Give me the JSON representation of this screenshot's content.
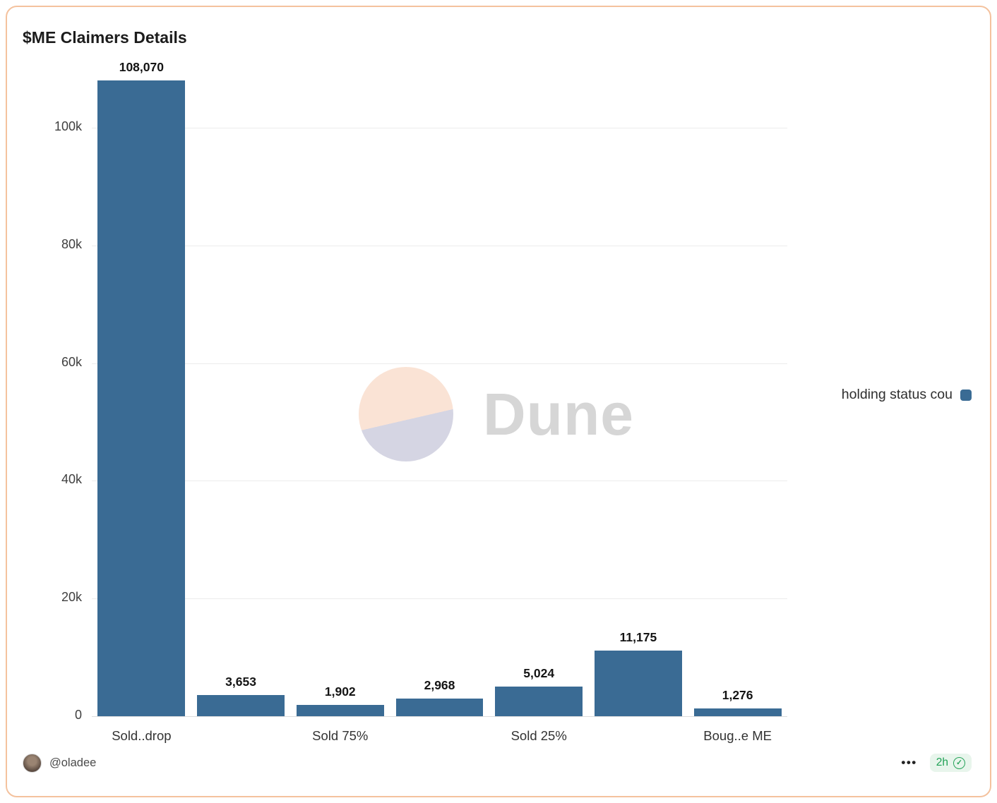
{
  "chart": {
    "title": "$ME Claimers Details",
    "legend": {
      "label": "holding status cou",
      "swatch_color": "#3a6b94"
    }
  },
  "chart_data": {
    "type": "bar",
    "title": "$ME Claimers Details",
    "categories": [
      "Sold..drop",
      "",
      "Sold 75%",
      "",
      "Sold 25%",
      "",
      "Boug..e ME"
    ],
    "series": [
      {
        "name": "holding status cou",
        "color": "#3a6b94",
        "values": [
          108070,
          3653,
          1902,
          2968,
          5024,
          11175,
          1276
        ]
      }
    ],
    "bar_labels": [
      "108,070",
      "3,653",
      "1,902",
      "2,968",
      "5,024",
      "11,175",
      "1,276"
    ],
    "x_tick_labels": [
      {
        "index": 0,
        "label": "Sold..drop"
      },
      {
        "index": 2,
        "label": "Sold 75%"
      },
      {
        "index": 4,
        "label": "Sold 25%"
      },
      {
        "index": 6,
        "label": "Boug..e ME"
      }
    ],
    "y_ticks": [
      {
        "value": 0,
        "label": "0"
      },
      {
        "value": 20000,
        "label": "20k"
      },
      {
        "value": 40000,
        "label": "40k"
      },
      {
        "value": 60000,
        "label": "60k"
      },
      {
        "value": 80000,
        "label": "80k"
      },
      {
        "value": 100000,
        "label": "100k"
      }
    ],
    "ylim": [
      0,
      108500
    ],
    "grid": true,
    "legend_position": "right"
  },
  "watermark": {
    "text": "Dune"
  },
  "footer": {
    "username": "@oladee",
    "menu_icon": "•••",
    "time": "2h",
    "verified_icon": "✓"
  }
}
